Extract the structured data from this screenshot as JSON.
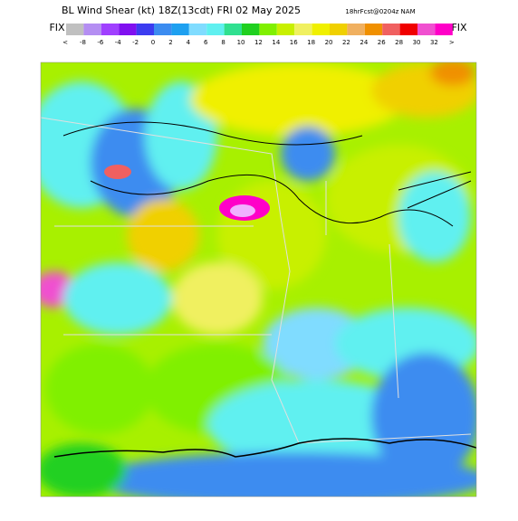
{
  "header": {
    "title": "BL Wind Shear (kt) 18Z(13cdt) FRI 02 May 2025",
    "subtitle": "18hrFcst@0204z NAM",
    "fix_left": "FIX",
    "fix_right": "FIX"
  },
  "legend": {
    "labels": [
      "<",
      "-8",
      "-6",
      "-4",
      "-2",
      "0",
      "2",
      "4",
      "6",
      "8",
      "10",
      "12",
      "14",
      "16",
      "18",
      "20",
      "22",
      "24",
      "26",
      "28",
      "30",
      "32",
      ">"
    ],
    "colors": [
      "#c0c0c0",
      "#b48ef2",
      "#a040ff",
      "#8010f0",
      "#3c3cf0",
      "#3c8cf0",
      "#1ea0f0",
      "#80dcff",
      "#60f0f0",
      "#30e090",
      "#20d020",
      "#80f000",
      "#c8f000",
      "#f0f060",
      "#f0f000",
      "#f0d000",
      "#f0b060",
      "#f09000",
      "#f06060",
      "#f00000",
      "#f050d0",
      "#ff00c8"
    ]
  }
}
